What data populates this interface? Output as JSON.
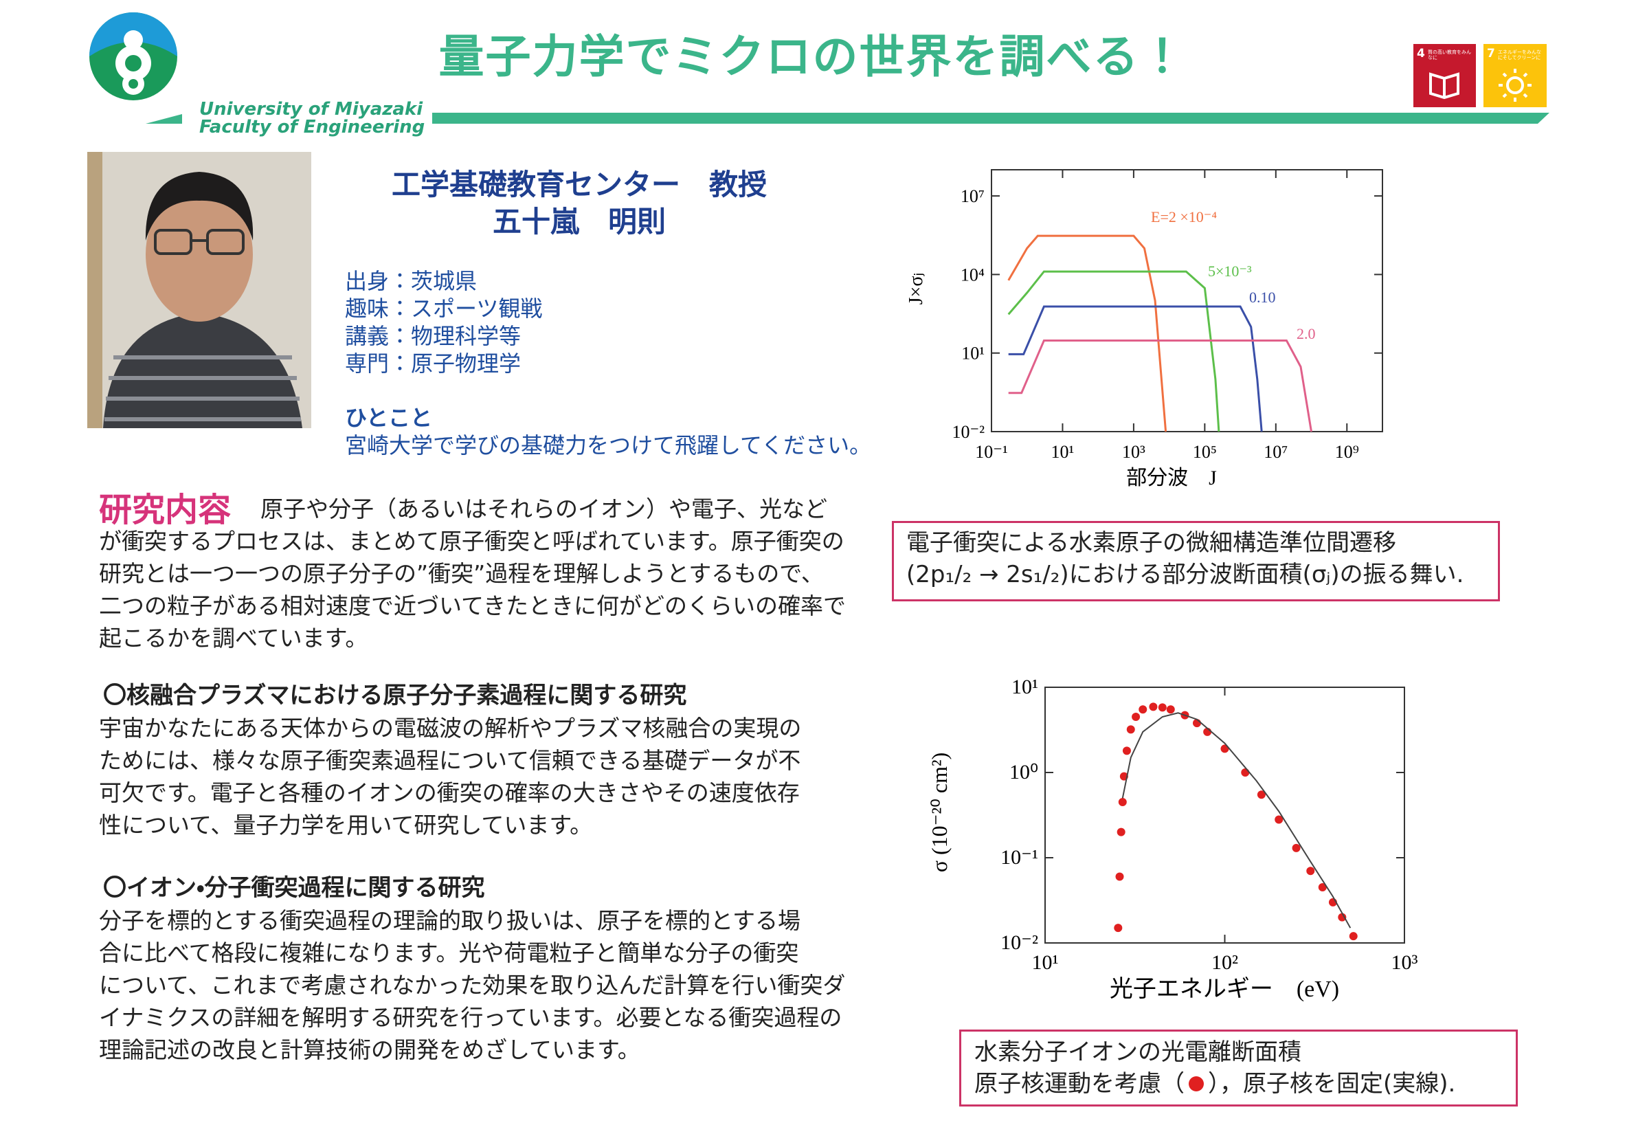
{
  "header": {
    "title": "量子力学でミクロの世界を調べる！",
    "logo_line1": "University of Miyazaki",
    "logo_line2": "Faculty of Engineering",
    "sdgs": [
      {
        "number": "4",
        "label": "質の高い教育をみんなに"
      },
      {
        "number": "7",
        "label": "エネルギーをみんなにそしてクリーンに"
      }
    ]
  },
  "profile": {
    "affiliation": "工学基礎教育センター　教授",
    "name": "五十嵐　明則",
    "details": [
      "出身：茨城県",
      "趣味：スポーツ観戦",
      "講義：物理科学等",
      "専門：原子物理学"
    ],
    "message_heading": "ひとこと",
    "message": "宮崎大学で学びの基礎力をつけて飛躍してください。"
  },
  "research": {
    "heading": "研究内容",
    "intro": [
      "原子や分子（あるいはそれらのイオン）や電子、光など",
      "が衝突するプロセスは、まとめて原子衝突と呼ばれています。原子衝突の",
      "研究とは一つ一つの原子分子の”衝突”過程を理解しようとするもので、",
      "二つの粒子がある相対速度で近づいてきたときに何がどのくらいの確率で",
      "起こるかを調べています。"
    ],
    "sections": [
      {
        "heading": "〇核融合プラズマにおける原子分子素過程に関する研究",
        "lines": [
          " 宇宙かなたにある天体からの電磁波の解析やプラズマ核融合の実現の",
          "ためには、様々な原子衝突素過程について信頼できる基礎データが不",
          "可欠です。電子と各種のイオンの衝突の確率の大きさやその速度依存",
          "性について、量子力学を用いて研究しています。"
        ]
      },
      {
        "heading": "〇イオン・分子衝突過程に関する研究",
        "lines": [
          "分子を標的とする衝突過程の理論的取り扱いは、原子を標的とする場",
          "合に比べて格段に複雑になります。光や荷電粒子と簡単な分子の衝突",
          "について、これまで考慮されなかった効果を取り込んだ計算を行い衝突ダ",
          "イナミクスの詳細を解明する研究を行っています。必要となる衝突過程の",
          "理論記述の改良と計算技術の開発をめざしています。"
        ]
      }
    ]
  },
  "captions": [
    {
      "lines": [
        "電子衝突による水素原子の微細構造準位間遷移",
        "(2p₁/₂ → 2s₁/₂)における部分波断面積(σⱼ)の振る舞い."
      ]
    },
    {
      "lines": [
        "水素分子イオンの光電離断面積"
      ],
      "line2_before": "原子核運動を考慮（",
      "line2_after": "），原子核を固定(実線)."
    }
  ],
  "chart_data": [
    {
      "type": "line",
      "x_label": "部分波　J",
      "y_label": "J×σⱼ",
      "xscale": "log",
      "yscale": "log",
      "xlim": [
        0.1,
        10000000000.0
      ],
      "ylim": [
        0.01,
        100000000.0
      ],
      "xticks": [
        {
          "value": 0.1,
          "label": "10⁻¹"
        },
        {
          "value": 10,
          "label": "10¹"
        },
        {
          "value": 1000,
          "label": "10³"
        },
        {
          "value": 100000,
          "label": "10⁵"
        },
        {
          "value": 10000000,
          "label": "10⁷"
        },
        {
          "value": 1000000000,
          "label": "10⁹"
        }
      ],
      "yticks": [
        {
          "value": 0.01,
          "label": "10⁻²"
        },
        {
          "value": 10,
          "label": "10¹"
        },
        {
          "value": 10000,
          "label": "10⁴"
        },
        {
          "value": 10000000,
          "label": "10⁷"
        }
      ],
      "series": [
        {
          "name": "E=2 ×10⁻⁴",
          "color": "#f07040",
          "x": [
            0.3,
            1,
            2,
            1000,
            2000,
            4000,
            8000
          ],
          "values": [
            6000,
            100000,
            300000,
            300000,
            100000,
            1000,
            0.01
          ]
        },
        {
          "name": "5×10⁻³",
          "color": "#5cbf4a",
          "x": [
            0.3,
            1,
            3,
            30000,
            100000,
            200000,
            250000
          ],
          "values": [
            300,
            2000,
            13000,
            13000,
            3000,
            1,
            0.01
          ]
        },
        {
          "name": "0.10",
          "color": "#3a4fa8",
          "x": [
            0.3,
            0.8,
            3,
            1000000,
            2000000,
            3000000,
            4000000
          ],
          "values": [
            9,
            9,
            600,
            600,
            100,
            1,
            0.01
          ]
        },
        {
          "name": "2.0",
          "color": "#e0608a",
          "x": [
            0.3,
            0.7,
            3,
            20000000,
            50000000,
            100000000
          ],
          "values": [
            0.3,
            0.3,
            30,
            30,
            3,
            0.01
          ]
        }
      ]
    },
    {
      "type": "line",
      "x_label": "光子エネルギー　(eV)",
      "y_label": "σ (10⁻²⁰ cm²)",
      "xscale": "log",
      "yscale": "log",
      "xlim": [
        10,
        1000
      ],
      "ylim": [
        0.01,
        10
      ],
      "xticks": [
        {
          "value": 10,
          "label": "10¹"
        },
        {
          "value": 100,
          "label": "10²"
        },
        {
          "value": 1000,
          "label": "10³"
        }
      ],
      "yticks": [
        {
          "value": 0.01,
          "label": "10⁻²"
        },
        {
          "value": 0.1,
          "label": "10⁻¹"
        },
        {
          "value": 1,
          "label": "10⁰"
        },
        {
          "value": 10,
          "label": "10¹"
        }
      ],
      "series": [
        {
          "color": "#e02020",
          "marker": "circle",
          "x": [
            25.5,
            26,
            26.5,
            27,
            27.5,
            28.5,
            30,
            32,
            35,
            40,
            45,
            50,
            60,
            70,
            80,
            100,
            130,
            160,
            200,
            250,
            300,
            350,
            400,
            450,
            520
          ],
          "values": [
            0.015,
            0.06,
            0.2,
            0.45,
            0.9,
            1.8,
            3.2,
            4.5,
            5.5,
            5.9,
            5.8,
            5.5,
            4.7,
            3.8,
            3.0,
            1.9,
            1.0,
            0.55,
            0.28,
            0.13,
            0.07,
            0.045,
            0.03,
            0.02,
            0.012
          ]
        },
        {
          "color": "#444444",
          "marker": "none",
          "x": [
            27,
            30,
            35,
            45,
            55,
            70,
            100,
            150,
            200,
            300,
            400,
            500
          ],
          "values": [
            0.5,
            1.5,
            3,
            4.5,
            5,
            4.2,
            2.2,
            0.8,
            0.35,
            0.09,
            0.035,
            0.015
          ]
        }
      ]
    }
  ]
}
